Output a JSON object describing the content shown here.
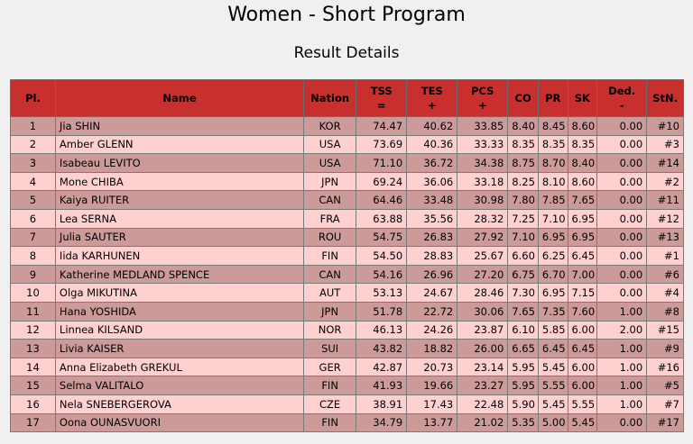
{
  "page": {
    "title": "Women - Short Program",
    "subtitle": "Result Details"
  },
  "table": {
    "headers": {
      "pl": "Pl.",
      "name": "Name",
      "nation": "Nation",
      "tss": "TSS",
      "tss_sub": "=",
      "tes": "TES",
      "tes_sub": "+",
      "pcs": "PCS",
      "pcs_sub": "+",
      "co": "CO",
      "pr": "PR",
      "sk": "SK",
      "ded": "Ded.",
      "ded_sub": "-",
      "stn": "StN."
    },
    "rows": [
      {
        "pl": "1",
        "name": "Jia SHIN",
        "nation": "KOR",
        "tss": "74.47",
        "tes": "40.62",
        "pcs": "33.85",
        "co": "8.40",
        "pr": "8.45",
        "sk": "8.60",
        "ded": "0.00",
        "stn": "#10"
      },
      {
        "pl": "2",
        "name": "Amber GLENN",
        "nation": "USA",
        "tss": "73.69",
        "tes": "40.36",
        "pcs": "33.33",
        "co": "8.35",
        "pr": "8.35",
        "sk": "8.35",
        "ded": "0.00",
        "stn": "#3"
      },
      {
        "pl": "3",
        "name": "Isabeau LEVITO",
        "nation": "USA",
        "tss": "71.10",
        "tes": "36.72",
        "pcs": "34.38",
        "co": "8.75",
        "pr": "8.70",
        "sk": "8.40",
        "ded": "0.00",
        "stn": "#14"
      },
      {
        "pl": "4",
        "name": "Mone CHIBA",
        "nation": "JPN",
        "tss": "69.24",
        "tes": "36.06",
        "pcs": "33.18",
        "co": "8.25",
        "pr": "8.10",
        "sk": "8.60",
        "ded": "0.00",
        "stn": "#2"
      },
      {
        "pl": "5",
        "name": "Kaiya RUITER",
        "nation": "CAN",
        "tss": "64.46",
        "tes": "33.48",
        "pcs": "30.98",
        "co": "7.80",
        "pr": "7.85",
        "sk": "7.65",
        "ded": "0.00",
        "stn": "#11"
      },
      {
        "pl": "6",
        "name": "Lea SERNA",
        "nation": "FRA",
        "tss": "63.88",
        "tes": "35.56",
        "pcs": "28.32",
        "co": "7.25",
        "pr": "7.10",
        "sk": "6.95",
        "ded": "0.00",
        "stn": "#12"
      },
      {
        "pl": "7",
        "name": "Julia SAUTER",
        "nation": "ROU",
        "tss": "54.75",
        "tes": "26.83",
        "pcs": "27.92",
        "co": "7.10",
        "pr": "6.95",
        "sk": "6.95",
        "ded": "0.00",
        "stn": "#13"
      },
      {
        "pl": "8",
        "name": "Iida KARHUNEN",
        "nation": "FIN",
        "tss": "54.50",
        "tes": "28.83",
        "pcs": "25.67",
        "co": "6.60",
        "pr": "6.25",
        "sk": "6.45",
        "ded": "0.00",
        "stn": "#1"
      },
      {
        "pl": "9",
        "name": "Katherine MEDLAND SPENCE",
        "nation": "CAN",
        "tss": "54.16",
        "tes": "26.96",
        "pcs": "27.20",
        "co": "6.75",
        "pr": "6.70",
        "sk": "7.00",
        "ded": "0.00",
        "stn": "#6"
      },
      {
        "pl": "10",
        "name": "Olga MIKUTINA",
        "nation": "AUT",
        "tss": "53.13",
        "tes": "24.67",
        "pcs": "28.46",
        "co": "7.30",
        "pr": "6.95",
        "sk": "7.15",
        "ded": "0.00",
        "stn": "#4"
      },
      {
        "pl": "11",
        "name": "Hana YOSHIDA",
        "nation": "JPN",
        "tss": "51.78",
        "tes": "22.72",
        "pcs": "30.06",
        "co": "7.65",
        "pr": "7.35",
        "sk": "7.60",
        "ded": "1.00",
        "stn": "#8"
      },
      {
        "pl": "12",
        "name": "Linnea KILSAND",
        "nation": "NOR",
        "tss": "46.13",
        "tes": "24.26",
        "pcs": "23.87",
        "co": "6.10",
        "pr": "5.85",
        "sk": "6.00",
        "ded": "2.00",
        "stn": "#15"
      },
      {
        "pl": "13",
        "name": "Livia KAISER",
        "nation": "SUI",
        "tss": "43.82",
        "tes": "18.82",
        "pcs": "26.00",
        "co": "6.65",
        "pr": "6.45",
        "sk": "6.45",
        "ded": "1.00",
        "stn": "#9"
      },
      {
        "pl": "14",
        "name": "Anna Elizabeth GREKUL",
        "nation": "GER",
        "tss": "42.87",
        "tes": "20.73",
        "pcs": "23.14",
        "co": "5.95",
        "pr": "5.45",
        "sk": "6.00",
        "ded": "1.00",
        "stn": "#16"
      },
      {
        "pl": "15",
        "name": "Selma VALITALO",
        "nation": "FIN",
        "tss": "41.93",
        "tes": "19.66",
        "pcs": "23.27",
        "co": "5.95",
        "pr": "5.55",
        "sk": "6.00",
        "ded": "1.00",
        "stn": "#5"
      },
      {
        "pl": "16",
        "name": "Nela SNEBERGEROVA",
        "nation": "CZE",
        "tss": "38.91",
        "tes": "17.43",
        "pcs": "22.48",
        "co": "5.90",
        "pr": "5.45",
        "sk": "5.55",
        "ded": "1.00",
        "stn": "#7"
      },
      {
        "pl": "17",
        "name": "Oona OUNASVUORI",
        "nation": "FIN",
        "tss": "34.79",
        "tes": "13.77",
        "pcs": "21.02",
        "co": "5.35",
        "pr": "5.00",
        "sk": "5.45",
        "ded": "0.00",
        "stn": "#17"
      }
    ]
  },
  "colors": {
    "header_bg": "#c8302f",
    "row_odd": "#cd9a9a",
    "row_even": "#ffd0d0",
    "page_bg": "#f0f0f0"
  }
}
